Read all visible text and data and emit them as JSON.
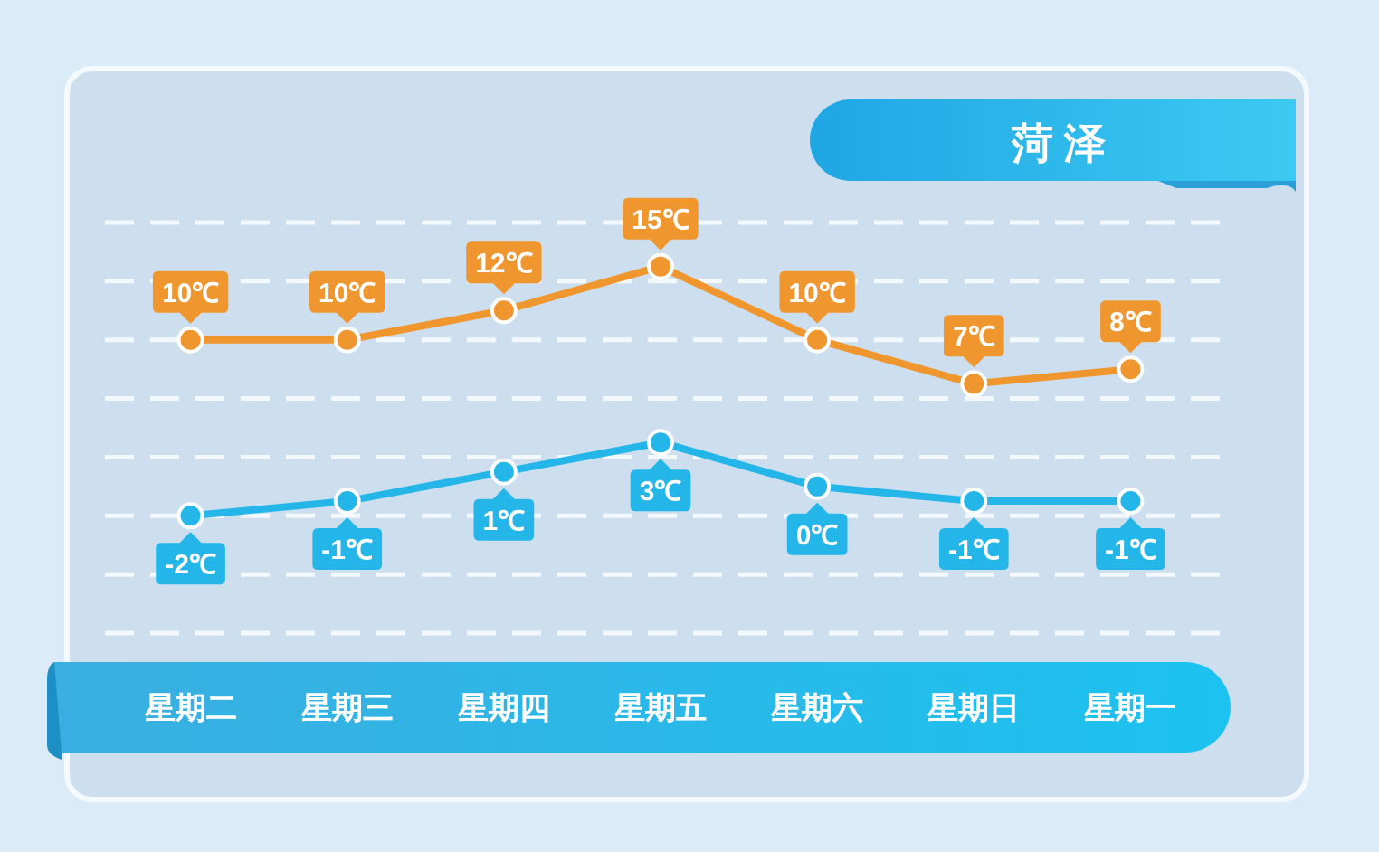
{
  "chart_data": {
    "type": "line",
    "title": "菏泽",
    "categories": [
      "星期二",
      "星期三",
      "星期四",
      "星期五",
      "星期六",
      "星期日",
      "星期一"
    ],
    "series": [
      {
        "color": "#f0962e",
        "values": [
          10,
          10,
          12,
          15,
          10,
          7,
          8
        ],
        "value_labels": [
          "10℃",
          "10℃",
          "12℃",
          "15℃",
          "10℃",
          "7℃",
          "8℃"
        ]
      },
      {
        "color": "#24b6e8",
        "values": [
          -2,
          -1,
          1,
          3,
          0,
          -1,
          -1
        ],
        "value_labels": [
          "-2℃",
          "-1℃",
          "1℃",
          "3℃",
          "0℃",
          "-1℃",
          "-1℃"
        ]
      }
    ],
    "yticks": [
      {
        "value": -10,
        "label": null
      },
      {
        "value": -6,
        "label": null
      },
      {
        "value": -2,
        "label": null
      },
      {
        "value": 2,
        "label": null
      },
      {
        "value": 6,
        "label": null
      },
      {
        "value": 10,
        "label": null
      },
      {
        "value": 14,
        "label": null
      },
      {
        "value": 18,
        "label": null
      }
    ],
    "grid": "y",
    "tick_labels": "x",
    "marker": "circle"
  }
}
